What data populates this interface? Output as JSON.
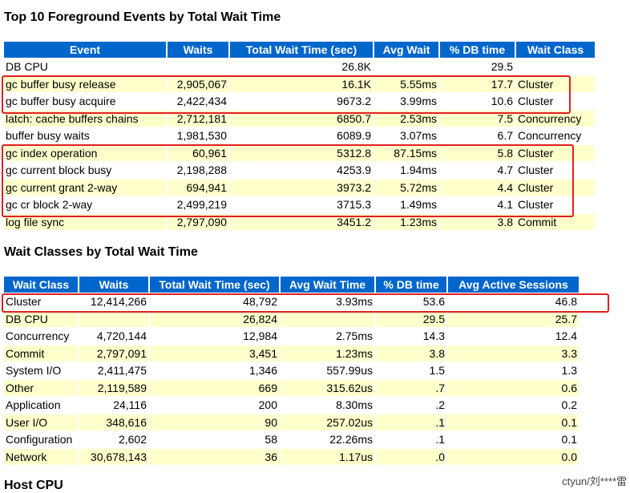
{
  "top_events": {
    "title": "Top 10 Foreground Events by Total Wait Time",
    "headers": [
      "Event",
      "Waits",
      "Total Wait Time (sec)",
      "Avg Wait",
      "% DB time",
      "Wait Class"
    ],
    "rows": [
      [
        "DB CPU",
        "",
        "26.8K",
        "",
        "29.5",
        ""
      ],
      [
        "gc buffer busy release",
        "2,905,067",
        "16.1K",
        "5.55ms",
        "17.7",
        "Cluster"
      ],
      [
        "gc buffer busy acquire",
        "2,422,434",
        "9673.2",
        "3.99ms",
        "10.6",
        "Cluster"
      ],
      [
        "latch: cache buffers chains",
        "2,712,181",
        "6850.7",
        "2.53ms",
        "7.5",
        "Concurrency"
      ],
      [
        "buffer busy waits",
        "1,981,530",
        "6089.9",
        "3.07ms",
        "6.7",
        "Concurrency"
      ],
      [
        "gc index operation",
        "60,961",
        "5312.8",
        "87.15ms",
        "5.8",
        "Cluster"
      ],
      [
        "gc current block busy",
        "2,198,288",
        "4253.9",
        "1.94ms",
        "4.7",
        "Cluster"
      ],
      [
        "gc current grant 2-way",
        "694,941",
        "3973.2",
        "5.72ms",
        "4.4",
        "Cluster"
      ],
      [
        "gc cr block 2-way",
        "2,499,219",
        "3715.3",
        "1.49ms",
        "4.1",
        "Cluster"
      ],
      [
        "log file sync",
        "2,797,090",
        "3451.2",
        "1.23ms",
        "3.8",
        "Commit"
      ]
    ]
  },
  "wait_classes": {
    "title": "Wait Classes by Total Wait Time",
    "headers": [
      "Wait Class",
      "Waits",
      "Total Wait Time (sec)",
      "Avg Wait Time",
      "% DB time",
      "Avg Active Sessions"
    ],
    "rows": [
      [
        "Cluster",
        "12,414,266",
        "48,792",
        "3.93ms",
        "53.6",
        "46.8"
      ],
      [
        "DB CPU",
        "",
        "26,824",
        "",
        "29.5",
        "25.7"
      ],
      [
        "Concurrency",
        "4,720,144",
        "12,984",
        "2.75ms",
        "14.3",
        "12.4"
      ],
      [
        "Commit",
        "2,797,091",
        "3,451",
        "1.23ms",
        "3.8",
        "3.3"
      ],
      [
        "System I/O",
        "2,411,475",
        "1,346",
        "557.99us",
        "1.5",
        "1.3"
      ],
      [
        "Other",
        "2,119,589",
        "669",
        "315.62us",
        ".7",
        "0.6"
      ],
      [
        "Application",
        "24,116",
        "200",
        "8.30ms",
        ".2",
        "0.2"
      ],
      [
        "User I/O",
        "348,616",
        "90",
        "257.02us",
        ".1",
        "0.1"
      ],
      [
        "Configuration",
        "2,602",
        "58",
        "22.26ms",
        ".1",
        "0.1"
      ],
      [
        "Network",
        "30,678,143",
        "36",
        "1.17us",
        ".0",
        "0.0"
      ]
    ]
  },
  "next_section_title": "Host CPU",
  "watermark": "ctyun/刘****雷",
  "colors": {
    "header_bg": "#0066cc",
    "stripe": "#ffffcc",
    "highlight": "#e02020"
  }
}
